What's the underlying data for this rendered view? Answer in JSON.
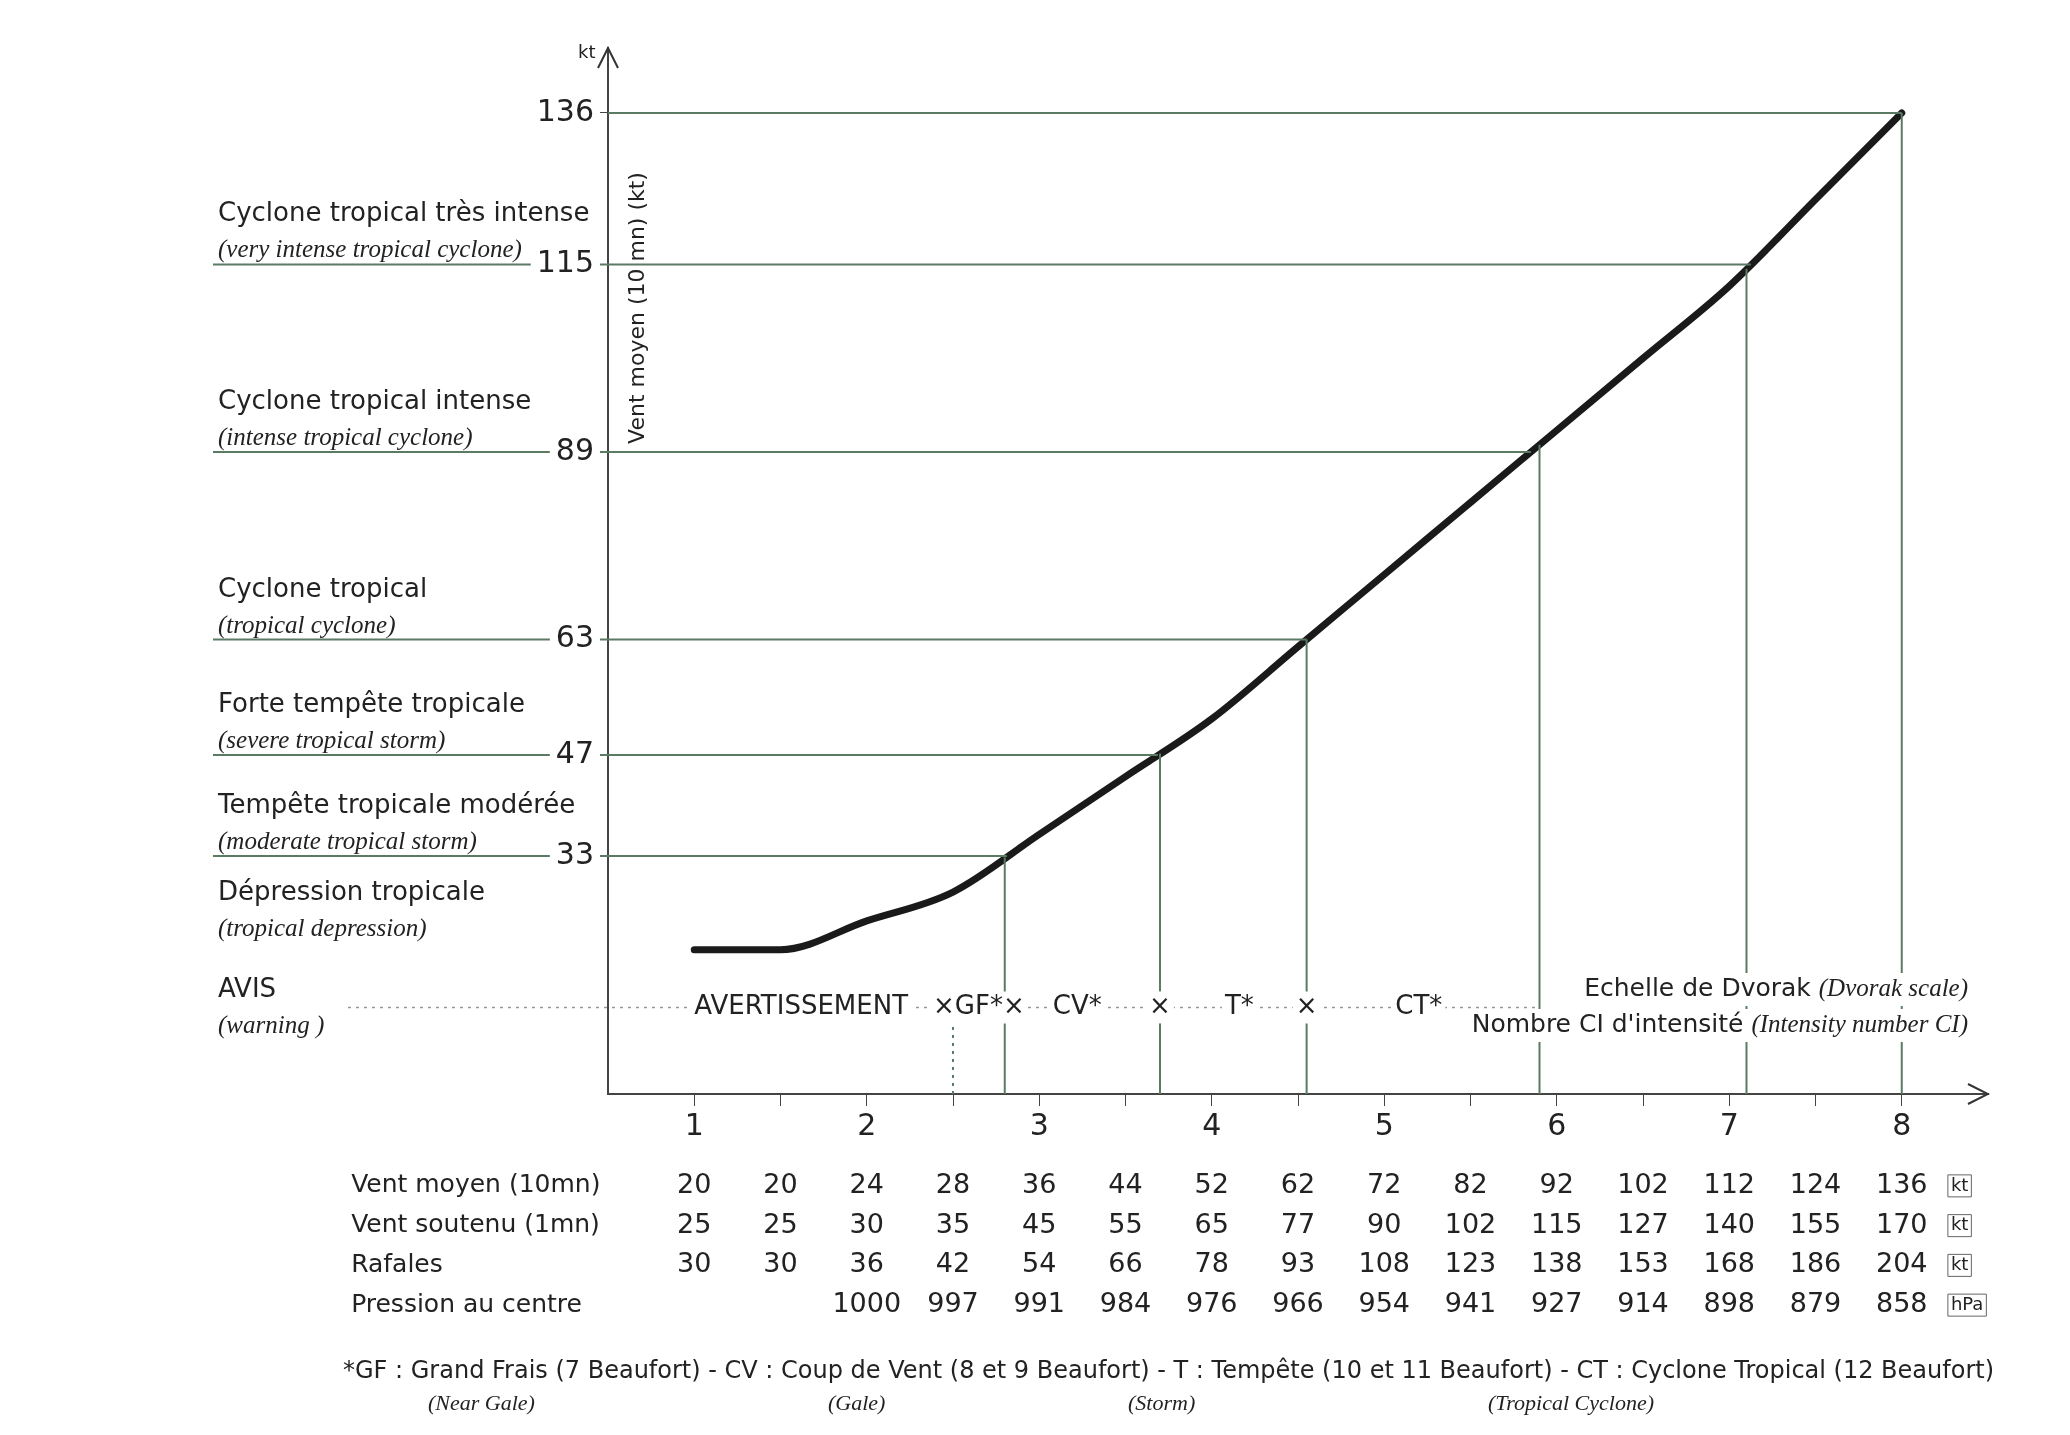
{
  "chart_data": [
    {
      "type": "line",
      "xlabel": "Echelle de Dvorak (Dvorak scale)\nNombre CI d'intensité (Intensity number CI)",
      "ylabel": "Vent moyen (10 mn) (kt)",
      "x": [
        1,
        1.5,
        2,
        2.5,
        3,
        3.5,
        4,
        4.5,
        5,
        5.5,
        6,
        6.5,
        7,
        7.5,
        8
      ],
      "xlim": [
        0.5,
        8.5
      ],
      "xticks": [
        1,
        {
          "value": 1.5,
          "label": null
        },
        2,
        {
          "value": 2.5,
          "label": null
        },
        3,
        {
          "value": 3.5,
          "label": null
        },
        4,
        {
          "value": 4.5,
          "label": null
        },
        5,
        {
          "value": 5.5,
          "label": null
        },
        6,
        {
          "value": 6.5,
          "label": null
        },
        7,
        {
          "value": 7.5,
          "label": null
        },
        8
      ],
      "ylim": [
        0,
        145
      ],
      "yticks": [
        33,
        47,
        63,
        89,
        115,
        136
      ],
      "series": [
        {
          "color": "#1a1a1a",
          "values": [
            20,
            20,
            24,
            28,
            36,
            44,
            52,
            62,
            72,
            82,
            92,
            102,
            112,
            124,
            136
          ]
        }
      ],
      "ref_lines": [
        {
          "axis": "y",
          "value": 33,
          "label": "Tempête tropicale modérée\n(moderate tropical storm)",
          "color": "#5a7a64"
        },
        {
          "axis": "y",
          "value": 47,
          "label": "Forte tempête tropicale\n(severe tropical storm)",
          "color": "#5a7a64"
        },
        {
          "axis": "y",
          "value": 63,
          "label": "Cyclone tropical\n(tropical cyclone)",
          "color": "#5a7a64"
        },
        {
          "axis": "y",
          "value": 89,
          "label": "Cyclone tropical intense\n(intense tropical cyclone)",
          "color": "#5a7a64"
        },
        {
          "axis": "y",
          "value": 115,
          "label": "Cyclone tropical très intense\n(very intense tropical cyclone)",
          "color": "#5a7a64"
        },
        {
          "axis": "y",
          "value": 136,
          "color": "#5a7a64"
        },
        {
          "axis": "y",
          "value": 12,
          "label": "AVIS\n(warning )",
          "color": "#999999",
          "line_style": "dotted"
        },
        {
          "axis": "x",
          "value": 2.5,
          "color": "#5a7a64",
          "line_style": "dotted"
        },
        {
          "axis": "x",
          "value": 2.8,
          "color": "#5a7a64"
        },
        {
          "axis": "x",
          "value": 3.7,
          "color": "#5a7a64"
        },
        {
          "axis": "x",
          "value": 4.55,
          "color": "#5a7a64"
        },
        {
          "axis": "x",
          "value": 5.9,
          "color": "#5a7a64"
        },
        {
          "axis": "x",
          "value": 7.1,
          "color": "#5a7a64"
        },
        {
          "axis": "x",
          "value": 8,
          "color": "#5a7a64"
        }
      ],
      "annotations": [
        "kt",
        "Dépression tropicale\n(tropical depression)",
        "AVERTISSEMENT",
        "×GF*×",
        "CV*",
        "×",
        "T*",
        "×",
        "CT*"
      ],
      "grid": false,
      "legend": false,
      "marker": "none",
      "line_style": "solid"
    },
    {
      "type": "heatmap",
      "categories": [
        null,
        null,
        null,
        null,
        null,
        null,
        null,
        null,
        null,
        null,
        null,
        null,
        null,
        null,
        null
      ],
      "y_categories": [
        "Vent moyen (10mn)",
        "Vent soutenu (1mn)",
        "Rafales",
        "Pression au centre"
      ],
      "y2_categories": [
        "kt",
        "kt",
        "kt",
        "hPa"
      ],
      "cells": [
        [
          20,
          20,
          24,
          28,
          36,
          44,
          52,
          62,
          72,
          82,
          92,
          102,
          112,
          124,
          136
        ],
        [
          25,
          25,
          30,
          35,
          45,
          55,
          65,
          77,
          90,
          102,
          115,
          127,
          140,
          155,
          170
        ],
        [
          30,
          30,
          36,
          42,
          54,
          66,
          78,
          93,
          108,
          123,
          138,
          153,
          168,
          186,
          204
        ],
        [
          null,
          null,
          1000,
          997,
          991,
          984,
          976,
          966,
          954,
          941,
          927,
          914,
          898,
          879,
          858
        ]
      ],
      "data_labels": true,
      "annotations": [
        "*GF : Grand Frais (7 Beaufort) - CV : Coup de Vent (8 et 9 Beaufort) - T : Tempête (10 et 11 Beaufort) - CT : Cyclone Tropical (12 Beaufort)",
        "(Near Gale)",
        "(Gale)",
        "(Storm)",
        "(Tropical Cyclone)"
      ]
    }
  ]
}
